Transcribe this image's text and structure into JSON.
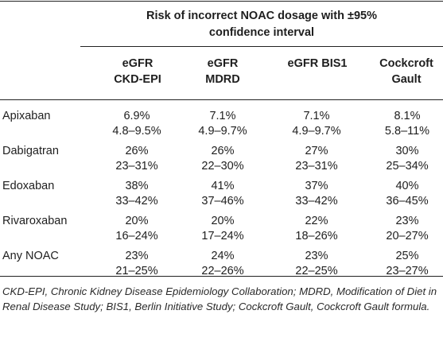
{
  "table": {
    "spanning_header_line1": "Risk of incorrect NOAC dosage with ±95%",
    "spanning_header_line2": "confidence interval",
    "columns": [
      {
        "line1": "eGFR",
        "line2": "CKD-EPI"
      },
      {
        "line1": "eGFR",
        "line2": "MDRD"
      },
      {
        "line1": "eGFR BIS1",
        "line2": ""
      },
      {
        "line1": "Cockcroft",
        "line2": "Gault"
      }
    ],
    "rows": [
      {
        "label": "Apixaban",
        "cells": [
          {
            "value": "6.9%",
            "ci": "4.8–9.5%"
          },
          {
            "value": "7.1%",
            "ci": "4.9–9.7%"
          },
          {
            "value": "7.1%",
            "ci": "4.9–9.7%"
          },
          {
            "value": "8.1%",
            "ci": "5.8–11%"
          }
        ]
      },
      {
        "label": "Dabigatran",
        "cells": [
          {
            "value": "26%",
            "ci": "23–31%"
          },
          {
            "value": "26%",
            "ci": "22–30%"
          },
          {
            "value": "27%",
            "ci": "23–31%"
          },
          {
            "value": "30%",
            "ci": "25–34%"
          }
        ]
      },
      {
        "label": "Edoxaban",
        "cells": [
          {
            "value": "38%",
            "ci": "33–42%"
          },
          {
            "value": "41%",
            "ci": "37–46%"
          },
          {
            "value": "37%",
            "ci": "33–42%"
          },
          {
            "value": "40%",
            "ci": "36–45%"
          }
        ]
      },
      {
        "label": "Rivaroxaban",
        "cells": [
          {
            "value": "20%",
            "ci": "16–24%"
          },
          {
            "value": "20%",
            "ci": "17–24%"
          },
          {
            "value": "22%",
            "ci": "18–26%"
          },
          {
            "value": "23%",
            "ci": "20–27%"
          }
        ]
      },
      {
        "label": "Any NOAC",
        "cells": [
          {
            "value": "23%",
            "ci": "21–25%"
          },
          {
            "value": "24%",
            "ci": "22–26%"
          },
          {
            "value": "23%",
            "ci": "22–25%"
          },
          {
            "value": "25%",
            "ci": "23–27%"
          }
        ]
      }
    ]
  },
  "caption": "CKD-EPI, Chronic Kidney Disease Epidemiology Collaboration; MDRD, Modification of Diet in Renal Disease Study; BIS1, Berlin Initiative Study; Cockcroft Gault, Cockcroft Gault formula."
}
